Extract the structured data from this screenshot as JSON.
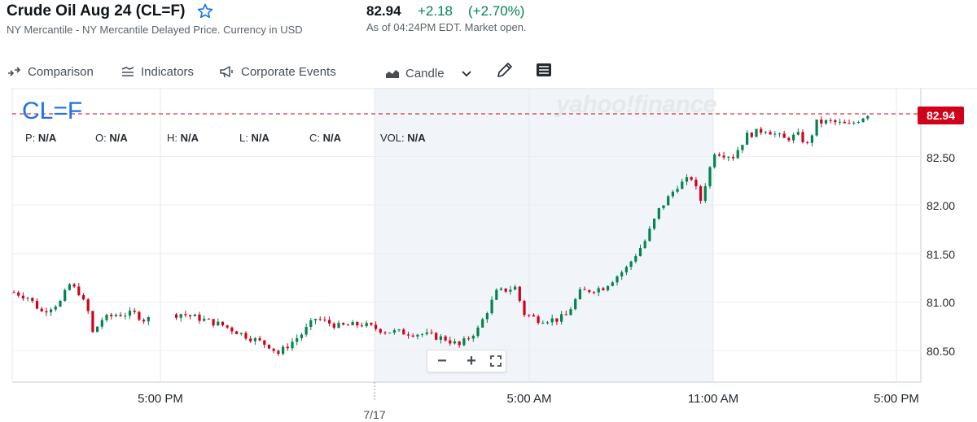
{
  "header": {
    "title": "Crude Oil Aug 24 (CL=F)",
    "subtitle": "NY Mercantile - NY Mercantile Delayed Price. Currency in USD",
    "price": "82.94",
    "change": "+2.18",
    "change_pct": "(+2.70%)",
    "as_of": "As of 04:24PM EDT. Market open."
  },
  "toolbar": {
    "comparison": "Comparison",
    "indicators": "Indicators",
    "corporate_events": "Corporate Events",
    "chart_type": "Candle"
  },
  "chart_overlay": {
    "symbol": "CL=F",
    "watermark": "yahoo!finance",
    "ohlc": [
      {
        "label": "P:",
        "value": "N/A"
      },
      {
        "label": "O:",
        "value": "N/A"
      },
      {
        "label": "H:",
        "value": "N/A"
      },
      {
        "label": "L:",
        "value": "N/A"
      },
      {
        "label": "C:",
        "value": "N/A"
      },
      {
        "label": "VOL:",
        "value": "N/A"
      }
    ],
    "last_price_tag": "82.94",
    "zoom": {
      "minus": "−",
      "plus": "+"
    }
  },
  "colors": {
    "up": "#008450",
    "down": "#d0021b",
    "accent": "#1a73e8",
    "session_shade": "#f1f4f8"
  },
  "chart_data": {
    "type": "candlestick",
    "title": "",
    "y_ticks": [
      80.5,
      81.0,
      81.5,
      82.0,
      82.5
    ],
    "y_tick_labels": [
      "80.50",
      "81.00",
      "81.50",
      "82.00",
      "82.50"
    ],
    "ylim": [
      80.2,
      83.05
    ],
    "x_tick_labels": [
      "5:00 PM",
      "5:00 AM",
      "11:00 AM",
      "5:00 PM"
    ],
    "date_label": "7/17",
    "last_price": 82.94,
    "grid": true,
    "path_points": [
      [
        0,
        81.1
      ],
      [
        3,
        81.05
      ],
      [
        6,
        80.9
      ],
      [
        10,
        81.0
      ],
      [
        12,
        81.18
      ],
      [
        14,
        81.1
      ],
      [
        16,
        80.9
      ],
      [
        17,
        80.68
      ],
      [
        19,
        80.82
      ],
      [
        22,
        80.87
      ],
      [
        26,
        80.88
      ],
      [
        28,
        80.82
      ],
      [
        36,
        80.88
      ],
      [
        40,
        80.83
      ],
      [
        45,
        80.76
      ],
      [
        50,
        80.65
      ],
      [
        55,
        80.55
      ],
      [
        57,
        80.47
      ],
      [
        62,
        80.67
      ],
      [
        65,
        80.83
      ],
      [
        70,
        80.75
      ],
      [
        75,
        80.77
      ],
      [
        80,
        80.7
      ],
      [
        88,
        80.67
      ],
      [
        93,
        80.62
      ],
      [
        96,
        80.55
      ],
      [
        100,
        80.72
      ],
      [
        104,
        81.1
      ],
      [
        108,
        81.15
      ],
      [
        110,
        80.88
      ],
      [
        113,
        80.82
      ],
      [
        117,
        80.82
      ],
      [
        119,
        80.86
      ],
      [
        122,
        81.1
      ],
      [
        127,
        81.15
      ],
      [
        132,
        81.35
      ],
      [
        136,
        81.63
      ],
      [
        139,
        81.95
      ],
      [
        143,
        82.2
      ],
      [
        146,
        82.28
      ],
      [
        148,
        82.05
      ],
      [
        151,
        82.55
      ],
      [
        155,
        82.5
      ],
      [
        158,
        82.72
      ],
      [
        162,
        82.78
      ],
      [
        166,
        82.68
      ],
      [
        169,
        82.72
      ],
      [
        171,
        82.62
      ],
      [
        173,
        82.85
      ],
      [
        176,
        82.86
      ],
      [
        180,
        82.82
      ],
      [
        184,
        82.94
      ]
    ]
  }
}
